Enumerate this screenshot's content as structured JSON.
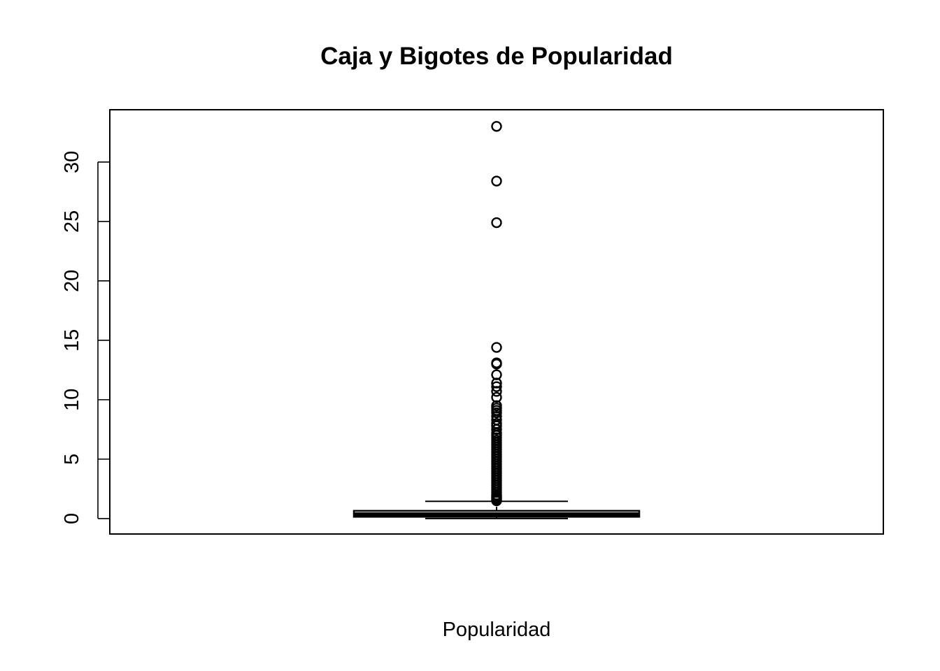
{
  "chart_data": {
    "type": "boxplot",
    "title": "Caja y Bigotes de Popularidad",
    "xlabel": "Popularidad",
    "ylabel": "",
    "ylim": [
      -1.3,
      34.4
    ],
    "yticks": [
      0,
      5,
      10,
      15,
      20,
      25,
      30
    ],
    "ytick_labels": [
      "0",
      "5",
      "10",
      "15",
      "20",
      "25",
      "30"
    ],
    "grid": false,
    "legend": "none",
    "box": {
      "min": 0.0,
      "q1": 0.15,
      "median": 0.35,
      "q3": 0.65,
      "whisker_low": 0.0,
      "whisker_high": 1.45
    },
    "outliers": [
      33.0,
      28.4,
      24.9,
      14.4,
      13.1,
      13.0,
      12.1,
      11.4,
      11.1,
      10.7,
      10.2,
      9.5,
      9.3,
      9.1,
      8.9,
      8.6,
      8.3,
      8.0,
      7.8,
      7.5,
      7.2,
      7.0,
      6.8,
      6.6,
      6.4,
      6.2,
      6.0,
      5.8,
      5.6,
      5.4,
      5.2,
      5.0,
      4.8,
      4.6,
      4.4,
      4.2,
      4.0,
      3.8,
      3.6,
      3.4,
      3.2,
      3.0,
      2.8,
      2.6,
      2.4,
      2.2,
      2.0,
      1.9,
      1.8,
      1.7,
      1.6,
      1.5
    ]
  }
}
